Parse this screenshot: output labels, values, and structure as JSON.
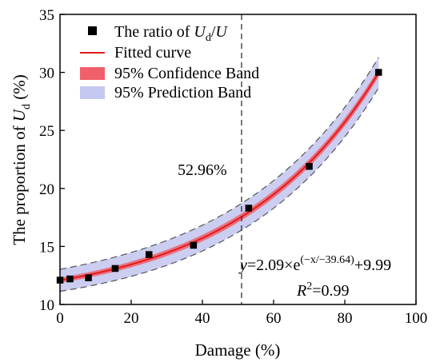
{
  "chart_data": {
    "type": "scatter",
    "xlabel": "Damage (%)",
    "ylabel": {
      "prefix": "The proportion of ",
      "var": "U",
      "sub": "d",
      "suffix": " (%)"
    },
    "xlim": [
      0,
      100
    ],
    "ylim": [
      10,
      35
    ],
    "xticks": [
      0,
      20,
      40,
      60,
      80,
      100
    ],
    "yticks": [
      10,
      15,
      20,
      25,
      30,
      35
    ],
    "grid": false,
    "legend_position": "top-left",
    "series": [
      {
        "key": "points",
        "legend": {
          "prefix": "The ratio of ",
          "var": "U",
          "sub": "d",
          "mid": "/",
          "var2": "U"
        },
        "color": "#000000",
        "marker": "square",
        "x": [
          0,
          2.8,
          8.0,
          15.5,
          25.0,
          37.5,
          53.0,
          70.0,
          89.5
        ],
        "y": [
          12.1,
          12.2,
          12.3,
          13.1,
          14.3,
          15.1,
          18.3,
          21.9,
          30.0
        ]
      },
      {
        "key": "fit",
        "legend_text": "Fitted curve",
        "color": "#e31a1c"
      },
      {
        "key": "confidence",
        "legend_text": "95% Confidence Band",
        "color": "#f0606a"
      },
      {
        "key": "prediction",
        "legend_text": "95% Prediction Band",
        "color": "#c5c8f0"
      }
    ],
    "fit": {
      "a": 2.09,
      "t": 39.64,
      "c": 9.99,
      "x_range": [
        0,
        89.5
      ]
    },
    "reference_line": {
      "x": 51,
      "style": "dashed"
    },
    "annotations": {
      "threshold_label": "52.96%",
      "equation": {
        "y": "y",
        "eq": "=2.09×e",
        "exponent": "(−x/−39.64)",
        "tail": "+9.99"
      },
      "r2": {
        "r": "R",
        "sup": "2",
        "value": "=0.99"
      }
    }
  }
}
